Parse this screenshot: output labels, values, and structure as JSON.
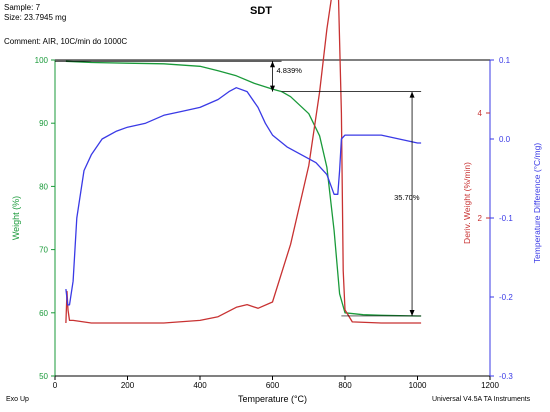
{
  "header": {
    "sample": "Sample: 7",
    "size": "Size: 23.7945 mg",
    "comment": "Comment: AIR, 10C/min do 1000C"
  },
  "footer": {
    "exo": "Exo Up",
    "software": "Universal V4.5A TA Instruments"
  },
  "colors": {
    "weight": "#1a9a3a",
    "deriv": "#c83232",
    "temp_diff": "#3a3ae6",
    "axis": "#000000"
  },
  "chart_data": {
    "type": "line",
    "title": "SDT",
    "xlabel": "Temperature (°C)",
    "xlim": [
      0,
      1200
    ],
    "xticks": [
      0,
      200,
      400,
      600,
      800,
      1000,
      1200
    ],
    "grid": false,
    "axes": {
      "weight": {
        "label": "Weight (%)",
        "ylim": [
          50,
          100
        ],
        "ticks": [
          50,
          60,
          70,
          80,
          90,
          100
        ]
      },
      "deriv": {
        "label": "Deriv. Weight (%/min)",
        "ticks": [
          2,
          4
        ]
      },
      "temp_diff": {
        "label": "Temperature Difference (°C/mg)",
        "ylim": [
          -0.3,
          0.1
        ],
        "ticks": [
          -0.3,
          -0.2,
          -0.1,
          0.0,
          0.1
        ]
      }
    },
    "series": [
      {
        "axis": "weight",
        "x": [
          30,
          100,
          200,
          300,
          400,
          450,
          500,
          550,
          600,
          625,
          650,
          700,
          730,
          750,
          770,
          785,
          800,
          850,
          900,
          1000,
          1010
        ],
        "y": [
          99.8,
          99.6,
          99.5,
          99.4,
          99.0,
          98.3,
          97.5,
          96.3,
          95.4,
          95.0,
          94.2,
          91.5,
          88.0,
          83.0,
          73.0,
          63.0,
          60.0,
          59.7,
          59.6,
          59.5,
          59.5
        ]
      },
      {
        "axis": "deriv",
        "x": [
          30,
          33,
          36,
          40,
          50,
          100,
          200,
          300,
          400,
          450,
          500,
          530,
          560,
          600,
          650,
          700,
          730,
          750,
          765,
          775,
          782,
          790,
          795,
          800,
          820,
          900,
          1000,
          1010
        ],
        "y": [
          0.0,
          0.6,
          0.25,
          0.05,
          0.05,
          0.0,
          0.0,
          0.0,
          0.05,
          0.12,
          0.3,
          0.35,
          0.28,
          0.4,
          1.5,
          3.0,
          4.4,
          5.6,
          6.3,
          6.7,
          6.2,
          4.0,
          1.0,
          0.25,
          0.02,
          0.0,
          0.0,
          0.0
        ]
      },
      {
        "axis": "temp_diff",
        "x": [
          30,
          35,
          40,
          50,
          60,
          80,
          100,
          130,
          170,
          200,
          250,
          300,
          350,
          400,
          450,
          480,
          500,
          530,
          560,
          580,
          600,
          640,
          680,
          720,
          750,
          770,
          780,
          785,
          790,
          800,
          850,
          900,
          1000,
          1010
        ],
        "y": [
          -0.19,
          -0.21,
          -0.21,
          -0.18,
          -0.1,
          -0.04,
          -0.02,
          0.0,
          0.01,
          0.015,
          0.02,
          0.03,
          0.035,
          0.04,
          0.05,
          0.06,
          0.065,
          0.06,
          0.04,
          0.02,
          0.005,
          -0.01,
          -0.02,
          -0.03,
          -0.045,
          -0.07,
          -0.07,
          -0.04,
          0.0,
          0.005,
          0.005,
          0.005,
          -0.005,
          -0.005
        ]
      }
    ],
    "annotations": [
      {
        "text": "4.839%",
        "x": 290,
        "y": 72
      },
      {
        "text": "35.70%",
        "x": 435,
        "y": 200
      }
    ]
  }
}
